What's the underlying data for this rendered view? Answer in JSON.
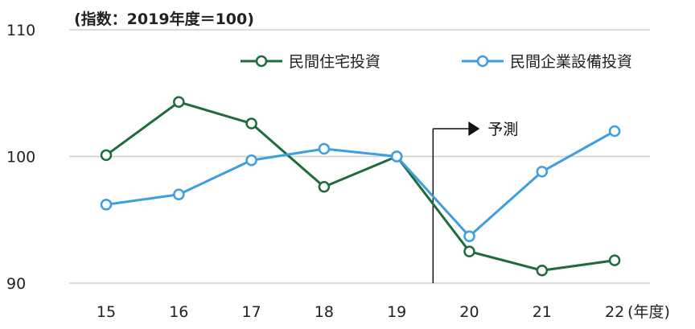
{
  "chart_data": {
    "type": "line",
    "unit_note": "(指数：2019年度＝100)",
    "x": [
      "15",
      "16",
      "17",
      "18",
      "19",
      "20",
      "21",
      "22"
    ],
    "x_unit": "(年度)",
    "ylim": [
      90,
      110
    ],
    "yticks": [
      "90",
      "100",
      "110"
    ],
    "grid": true,
    "legend_position": "top-right",
    "series": [
      {
        "name": "民間住宅投資",
        "color": "#1e6b3c",
        "values": [
          100.1,
          104.3,
          102.6,
          97.6,
          100.0,
          92.5,
          91.0,
          91.8
        ]
      },
      {
        "name": "民間企業設備投資",
        "color": "#3d9ee0",
        "values": [
          96.2,
          97.0,
          99.7,
          100.6,
          100.0,
          93.7,
          98.8,
          102.0
        ]
      }
    ],
    "annotation": {
      "label": "予測",
      "after_x": "19"
    }
  }
}
